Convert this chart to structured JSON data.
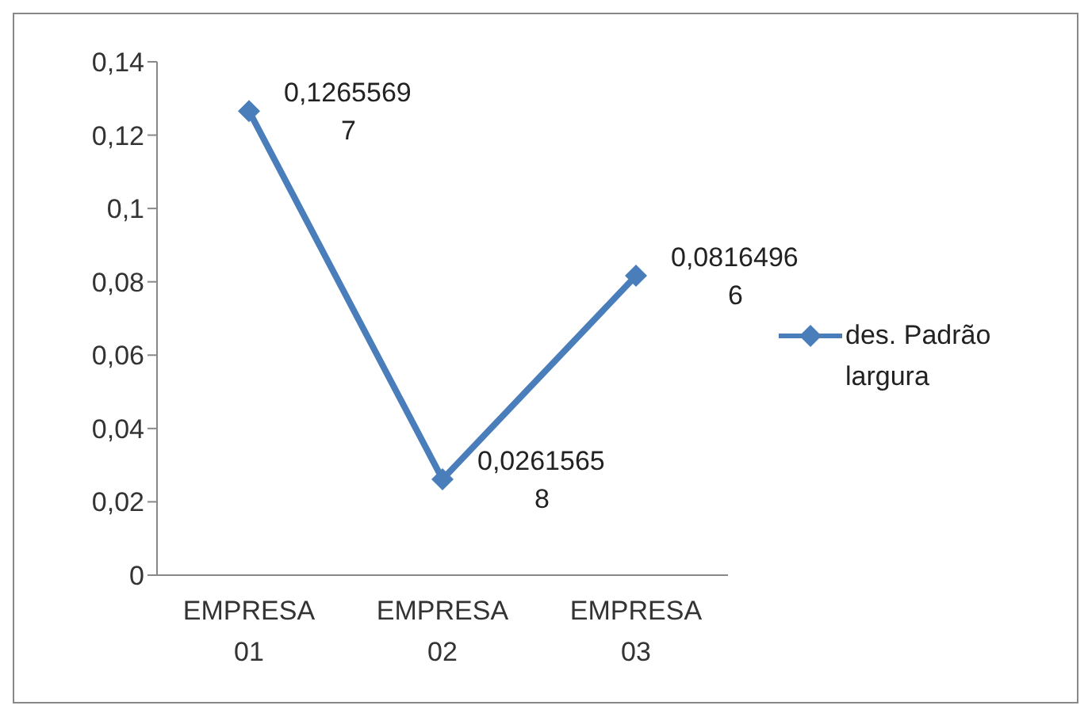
{
  "chart_data": {
    "type": "line",
    "categories": [
      "EMPRESA 01",
      "EMPRESA 02",
      "EMPRESA 03"
    ],
    "series": [
      {
        "name": "des. Padrão largura",
        "color": "#4a7ebb",
        "values": [
          0.12655697,
          0.02615658,
          0.08164966
        ],
        "value_labels": [
          "0,12655697",
          "0,02615658",
          "0,08164966"
        ]
      }
    ],
    "ylim": [
      0,
      0.14
    ],
    "yticks": [
      {
        "value": 0,
        "label": "0"
      },
      {
        "value": 0.02,
        "label": "0,02"
      },
      {
        "value": 0.04,
        "label": "0,04"
      },
      {
        "value": 0.06,
        "label": "0,06"
      },
      {
        "value": 0.08,
        "label": "0,08"
      },
      {
        "value": 0.1,
        "label": "0,1"
      },
      {
        "value": 0.12,
        "label": "0,12"
      },
      {
        "value": 0.14,
        "label": "0,14"
      }
    ],
    "grid": false,
    "legend": "right",
    "marker": "diamond",
    "line_style": "solid"
  }
}
